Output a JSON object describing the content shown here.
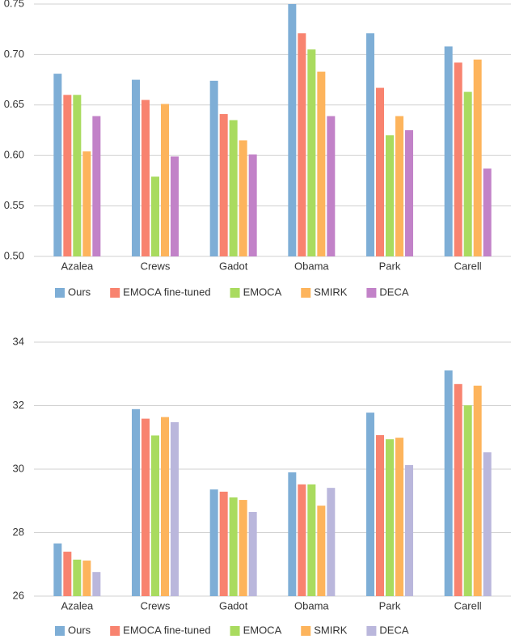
{
  "chart_data": [
    {
      "type": "bar",
      "categories": [
        "Azalea",
        "Crews",
        "Gadot",
        "Obama",
        "Park",
        "Carell"
      ],
      "ylim": [
        0.5,
        0.75
      ],
      "yticks": [
        {
          "value": 0.5,
          "label": "0.50"
        },
        0.55,
        {
          "value": 0.6,
          "label": "0.60"
        },
        0.65,
        {
          "value": 0.7,
          "label": "0.70"
        },
        0.75
      ],
      "grid": true,
      "series": [
        {
          "name": "Ours",
          "color": "#7eaed6",
          "values": [
            0.681,
            0.675,
            0.674,
            0.75,
            0.721,
            0.708
          ]
        },
        {
          "name": "EMOCA fine-tuned",
          "color": "#f8836f",
          "values": [
            0.66,
            0.655,
            0.641,
            0.721,
            0.667,
            0.692
          ]
        },
        {
          "name": "EMOCA",
          "color": "#a9db5f",
          "values": [
            0.66,
            0.579,
            0.635,
            0.705,
            0.62,
            0.663
          ]
        },
        {
          "name": "SMIRK",
          "color": "#fdb45c",
          "values": [
            0.604,
            0.651,
            0.615,
            0.683,
            0.639,
            0.695
          ]
        },
        {
          "name": "DECA",
          "color": "#c282c8",
          "values": [
            0.639,
            0.599,
            0.601,
            0.639,
            0.625,
            0.587
          ]
        }
      ]
    },
    {
      "type": "bar",
      "categories": [
        "Azalea",
        "Crews",
        "Gadot",
        "Obama",
        "Park",
        "Carell"
      ],
      "ylim": [
        26,
        34
      ],
      "yticks": [
        26,
        28,
        30,
        32,
        34
      ],
      "grid": true,
      "series": [
        {
          "name": "Ours",
          "color": "#7eaed6",
          "values": [
            27.66,
            31.89,
            29.36,
            29.9,
            31.78,
            33.11
          ]
        },
        {
          "name": "EMOCA fine-tuned",
          "color": "#f8836f",
          "values": [
            27.4,
            31.59,
            29.29,
            29.52,
            31.07,
            32.68
          ]
        },
        {
          "name": "EMOCA",
          "color": "#a9db5f",
          "values": [
            27.15,
            31.06,
            29.11,
            29.52,
            30.94,
            32.01
          ]
        },
        {
          "name": "SMIRK",
          "color": "#fdb45c",
          "values": [
            27.12,
            31.64,
            29.03,
            28.85,
            30.99,
            32.63
          ]
        },
        {
          "name": "DECA",
          "color": "#bab7dc",
          "values": [
            26.76,
            31.48,
            28.65,
            29.41,
            30.13,
            30.53
          ]
        }
      ]
    }
  ]
}
